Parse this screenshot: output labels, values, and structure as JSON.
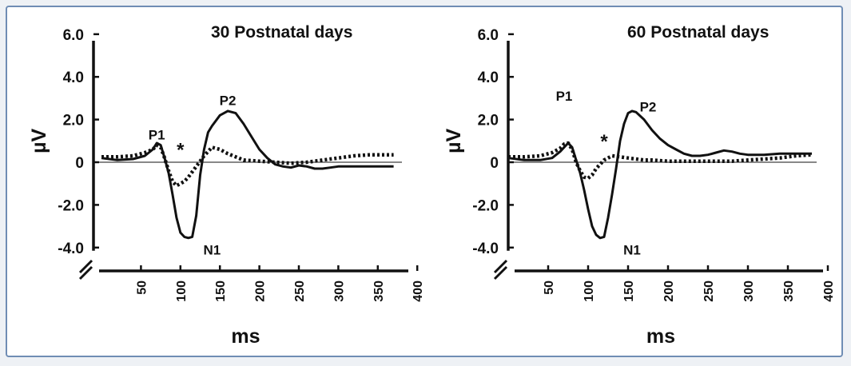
{
  "chart_data": [
    {
      "type": "line",
      "title": "30 Postnatal days",
      "xlabel": "ms",
      "ylabel": "µV",
      "xlim": [
        0,
        400
      ],
      "ylim": [
        -4.0,
        6.0
      ],
      "x_ticks": [
        "50",
        "100",
        "150",
        "200",
        "250",
        "300",
        "350",
        "400"
      ],
      "y_ticks": [
        "6.0",
        "4.0",
        "2.0",
        "0",
        "-2.0",
        "-4.0"
      ],
      "axis_break": true,
      "baseline": 0,
      "series": [
        {
          "style": "solid",
          "color": "#111111",
          "x": [
            0,
            20,
            40,
            55,
            65,
            70,
            75,
            80,
            85,
            90,
            95,
            100,
            105,
            110,
            115,
            120,
            125,
            130,
            135,
            140,
            150,
            160,
            170,
            180,
            190,
            200,
            210,
            220,
            230,
            240,
            250,
            260,
            270,
            280,
            290,
            300,
            320,
            340,
            360,
            370
          ],
          "values": [
            0.2,
            0.1,
            0.15,
            0.3,
            0.6,
            0.9,
            0.8,
            0.2,
            -0.5,
            -1.5,
            -2.6,
            -3.3,
            -3.5,
            -3.55,
            -3.5,
            -2.5,
            -0.6,
            0.6,
            1.4,
            1.7,
            2.2,
            2.4,
            2.3,
            1.8,
            1.2,
            0.6,
            0.2,
            -0.1,
            -0.2,
            -0.25,
            -0.15,
            -0.2,
            -0.3,
            -0.3,
            -0.25,
            -0.2,
            -0.2,
            -0.2,
            -0.2,
            -0.2
          ]
        },
        {
          "style": "dotted",
          "color": "#111111",
          "x": [
            0,
            20,
            40,
            55,
            65,
            70,
            75,
            80,
            85,
            90,
            95,
            100,
            105,
            110,
            120,
            130,
            140,
            150,
            160,
            170,
            180,
            200,
            220,
            240,
            260,
            280,
            300,
            320,
            340,
            360,
            370
          ],
          "values": [
            0.25,
            0.25,
            0.3,
            0.45,
            0.6,
            0.8,
            0.7,
            0.2,
            -0.4,
            -0.9,
            -1.1,
            -1.0,
            -0.9,
            -0.7,
            -0.2,
            0.3,
            0.7,
            0.6,
            0.4,
            0.25,
            0.1,
            0.05,
            0.0,
            -0.05,
            0.0,
            0.1,
            0.2,
            0.3,
            0.35,
            0.35,
            0.35
          ]
        }
      ],
      "annotations": [
        {
          "text": "P1",
          "x": 70,
          "y": 1.3
        },
        {
          "text": "*",
          "x": 100,
          "y": 0.8
        },
        {
          "text": "P2",
          "x": 160,
          "y": 2.9
        },
        {
          "text": "N1",
          "x": 140,
          "y": -4.1
        }
      ]
    },
    {
      "type": "line",
      "title": "60 Postnatal days",
      "xlabel": "ms",
      "ylabel": "µV",
      "xlim": [
        0,
        400
      ],
      "ylim": [
        -4.0,
        6.0
      ],
      "x_ticks": [
        "50",
        "100",
        "150",
        "200",
        "250",
        "300",
        "350",
        "400"
      ],
      "y_ticks": [
        "6.0",
        "4.0",
        "2.0",
        "0",
        "-2.0",
        "-4.0"
      ],
      "axis_break": true,
      "baseline": 0,
      "series": [
        {
          "style": "solid",
          "color": "#111111",
          "x": [
            0,
            20,
            40,
            55,
            65,
            70,
            75,
            80,
            85,
            90,
            95,
            100,
            105,
            110,
            115,
            120,
            125,
            130,
            135,
            140,
            145,
            150,
            155,
            160,
            170,
            180,
            190,
            200,
            210,
            220,
            230,
            240,
            250,
            260,
            270,
            280,
            290,
            300,
            320,
            340,
            360,
            380
          ],
          "values": [
            0.2,
            0.1,
            0.1,
            0.2,
            0.5,
            0.7,
            0.9,
            0.7,
            0.1,
            -0.5,
            -1.3,
            -2.2,
            -3.0,
            -3.4,
            -3.55,
            -3.5,
            -2.6,
            -1.5,
            -0.3,
            1.0,
            1.8,
            2.3,
            2.4,
            2.35,
            2.0,
            1.5,
            1.1,
            0.8,
            0.6,
            0.4,
            0.3,
            0.3,
            0.35,
            0.45,
            0.55,
            0.5,
            0.4,
            0.35,
            0.35,
            0.4,
            0.4,
            0.4
          ]
        },
        {
          "style": "dotted",
          "color": "#111111",
          "x": [
            0,
            20,
            40,
            55,
            65,
            70,
            75,
            80,
            85,
            90,
            95,
            100,
            105,
            110,
            120,
            130,
            140,
            150,
            160,
            170,
            180,
            200,
            220,
            240,
            260,
            280,
            300,
            320,
            340,
            360,
            380
          ],
          "values": [
            0.25,
            0.25,
            0.3,
            0.45,
            0.65,
            0.85,
            0.9,
            0.6,
            0.0,
            -0.4,
            -0.7,
            -0.75,
            -0.6,
            -0.3,
            0.1,
            0.3,
            0.25,
            0.2,
            0.15,
            0.1,
            0.1,
            0.05,
            0.05,
            0.05,
            0.05,
            0.05,
            0.1,
            0.15,
            0.2,
            0.3,
            0.35
          ]
        }
      ],
      "annotations": [
        {
          "text": "P1",
          "x": 70,
          "y": 3.1
        },
        {
          "text": "*",
          "x": 120,
          "y": 1.2
        },
        {
          "text": "P2",
          "x": 175,
          "y": 2.6
        },
        {
          "text": "N1",
          "x": 155,
          "y": -4.1
        }
      ]
    }
  ]
}
